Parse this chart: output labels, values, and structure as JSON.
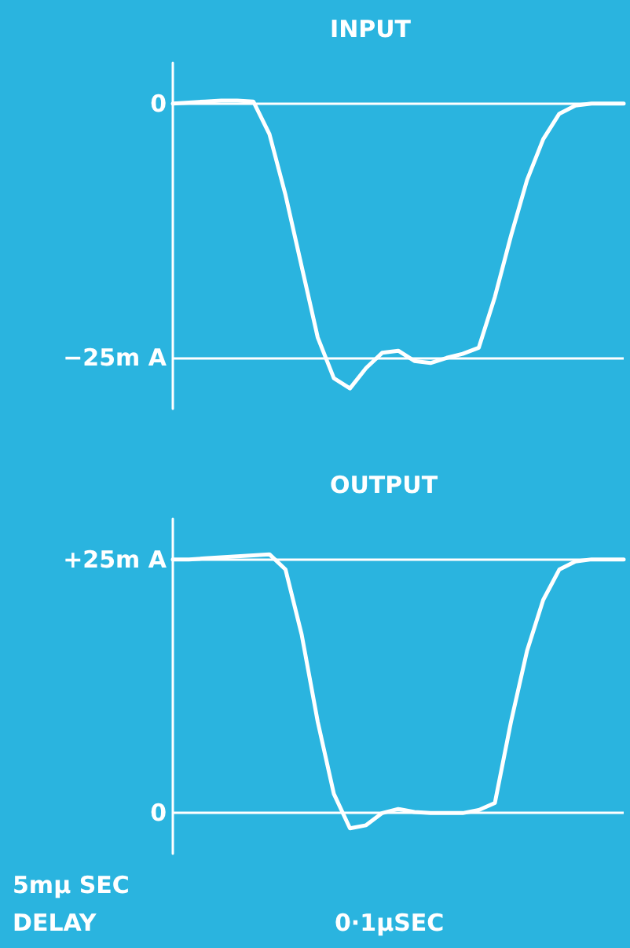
{
  "chart_data": [
    {
      "type": "line",
      "title": "INPUT",
      "categories": [
        null,
        null,
        null,
        null,
        null,
        null,
        null,
        null,
        null,
        null,
        null,
        null,
        null,
        null,
        null,
        null,
        null,
        null,
        null,
        null,
        null,
        null,
        null,
        null,
        null,
        null,
        null,
        null,
        null
      ],
      "series": [
        {
          "color": "#ffffff",
          "values": [
            0,
            0.1,
            0.2,
            0.3,
            0.3,
            0.2,
            -3,
            -9,
            -16,
            -23,
            -27,
            -28,
            -26,
            -24.5,
            -24.3,
            -25.3,
            -25.5,
            -25,
            -24.6,
            -24,
            -19,
            -13,
            -7.5,
            -3.5,
            -1,
            -0.2,
            0,
            0,
            0
          ]
        }
      ],
      "ylim": [
        -30,
        4
      ],
      "yticks": [
        {
          "value": 0,
          "label": "0"
        },
        {
          "value": -25,
          "label": "−25m A"
        }
      ],
      "tick_labels": "y",
      "grid": "y",
      "marker": "none",
      "line_style": "solid"
    },
    {
      "type": "line",
      "title": "OUTPUT",
      "categories": [
        null,
        null,
        null,
        null,
        null,
        null,
        null,
        null,
        null,
        null,
        null,
        null,
        null,
        null,
        null,
        null,
        null,
        null,
        null,
        null,
        null,
        null,
        null,
        null,
        null,
        null,
        null,
        null,
        null
      ],
      "series": [
        {
          "color": "#ffffff",
          "values": [
            25,
            25,
            25.1,
            25.2,
            25.3,
            25.4,
            25.5,
            24,
            17.6,
            9,
            1.9,
            -1.5,
            -1.2,
            0,
            0.4,
            0.1,
            0,
            0,
            0,
            0.3,
            1,
            9,
            16,
            21,
            24,
            24.8,
            25,
            25,
            25
          ]
        }
      ],
      "ylim": [
        -4,
        29
      ],
      "yticks": [
        {
          "value": 25,
          "label": "+25m A"
        },
        {
          "value": 0,
          "label": "0"
        }
      ],
      "tick_labels": "y",
      "grid": "y",
      "marker": "none",
      "line_style": "solid",
      "annotations": [
        "5mμ SEC\nDELAY",
        "0·1μSEC"
      ]
    }
  ]
}
